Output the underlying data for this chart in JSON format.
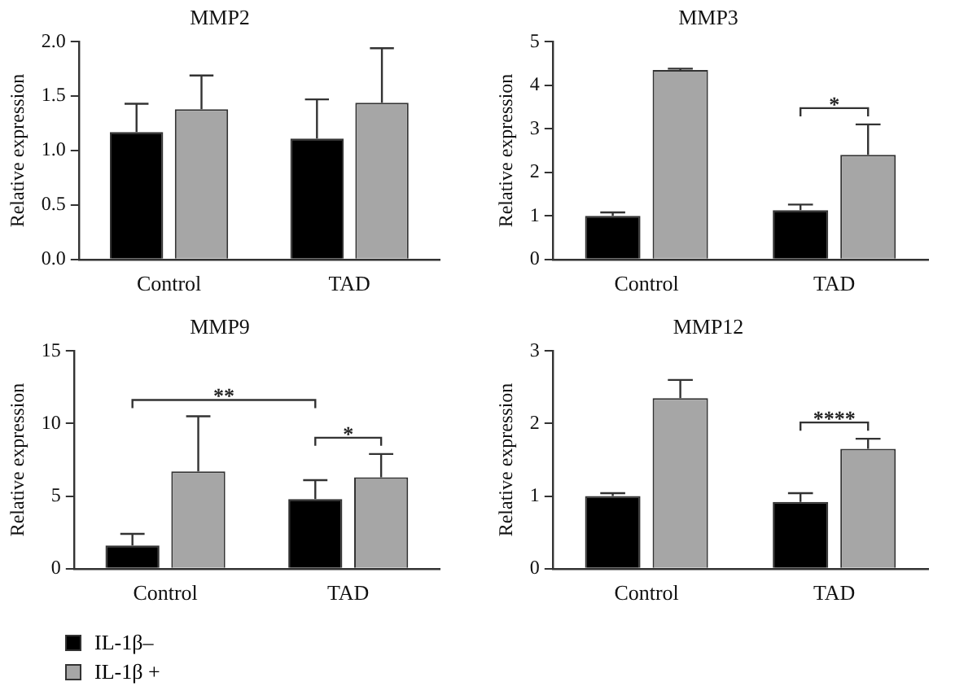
{
  "chart_data": [
    {
      "type": "bar",
      "title": "MMP2",
      "ylabel": "Relative expression",
      "categories": [
        "Control",
        "TAD"
      ],
      "ylim": [
        0,
        2.0
      ],
      "yticks": [
        {
          "value": 0,
          "label": "0.0"
        },
        {
          "value": 0.5,
          "label": "0.5"
        },
        {
          "value": 1,
          "label": "1.0"
        },
        {
          "value": 1.5,
          "label": "1.5"
        },
        {
          "value": 2,
          "label": "2.0"
        }
      ],
      "grid": false,
      "series": [
        {
          "color": "#000000",
          "values": [
            1.17,
            1.11
          ],
          "errors": [
            [
              1.17,
              1.43
            ],
            [
              1.11,
              1.47
            ]
          ]
        },
        {
          "color": "#a6a6a6",
          "values": [
            1.38,
            1.44
          ],
          "errors": [
            [
              1.38,
              1.69
            ],
            [
              1.44,
              1.94
            ]
          ]
        }
      ]
    },
    {
      "type": "bar",
      "title": "MMP3",
      "ylabel": "Relative expression",
      "categories": [
        "Control",
        "TAD"
      ],
      "ylim": [
        0,
        5
      ],
      "yticks": [
        0,
        1,
        2,
        3,
        4,
        5
      ],
      "grid": false,
      "series": [
        {
          "color": "#000000",
          "values": [
            1.0,
            1.13
          ],
          "errors": [
            [
              1.0,
              1.08
            ],
            [
              1.13,
              1.26
            ]
          ]
        },
        {
          "color": "#a6a6a6",
          "values": [
            4.35,
            2.4
          ],
          "errors": [
            [
              4.35,
              4.38
            ],
            [
              2.4,
              3.1
            ]
          ]
        }
      ],
      "annotations": [
        "*"
      ]
    },
    {
      "type": "bar",
      "title": "MMP9",
      "ylabel": "Relative expression",
      "categories": [
        "Control",
        "TAD"
      ],
      "ylim": [
        0,
        15
      ],
      "yticks": [
        0,
        5,
        10,
        15
      ],
      "grid": false,
      "legend": "bottom left",
      "series": [
        {
          "name": "IL-1β–",
          "color": "#000000",
          "values": [
            1.6,
            4.8
          ],
          "errors": [
            [
              1.6,
              2.4
            ],
            [
              4.8,
              6.1
            ]
          ]
        },
        {
          "name": "IL-1β +",
          "color": "#a6a6a6",
          "values": [
            6.7,
            6.3
          ],
          "errors": [
            [
              6.7,
              10.5
            ],
            [
              6.3,
              7.9
            ]
          ]
        }
      ],
      "annotations": [
        "**",
        "*"
      ]
    },
    {
      "type": "bar",
      "title": "MMP12",
      "ylabel": "Relative expression",
      "categories": [
        "Control",
        "TAD"
      ],
      "ylim": [
        0,
        3
      ],
      "yticks": [
        0,
        1,
        2,
        3
      ],
      "grid": false,
      "series": [
        {
          "color": "#000000",
          "values": [
            1.0,
            0.92
          ],
          "errors": [
            [
              1.0,
              1.04
            ],
            [
              0.92,
              1.04
            ]
          ]
        },
        {
          "color": "#a6a6a6",
          "values": [
            2.35,
            1.65
          ],
          "errors": [
            [
              2.35,
              2.6
            ],
            [
              1.65,
              1.79
            ]
          ]
        }
      ],
      "annotations": [
        "****"
      ]
    }
  ]
}
